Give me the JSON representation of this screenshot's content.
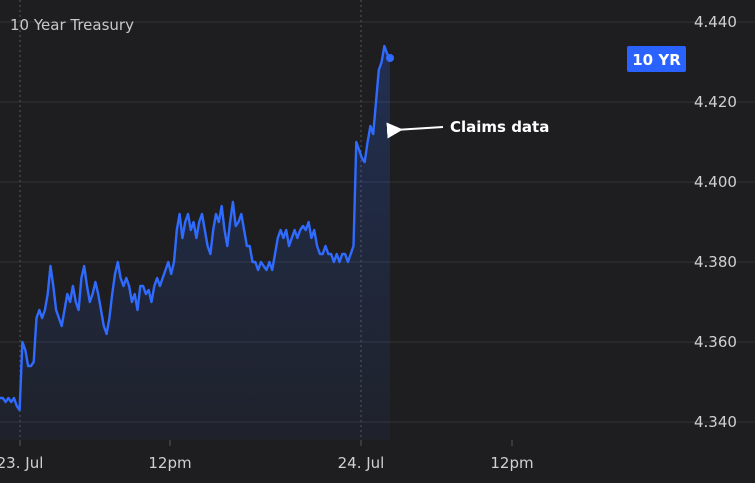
{
  "chart_data": {
    "type": "line",
    "title": "10 Year Treasury",
    "x_ticks": [
      "23. Jul",
      "12pm",
      "24. Jul",
      "12pm"
    ],
    "y_ticks": [
      "4.440",
      "4.420",
      "4.400",
      "4.380",
      "4.360",
      "4.340"
    ],
    "ylim": [
      4.3355,
      4.4455
    ],
    "grid": true,
    "badge_label": "10 YR",
    "annotation": "Claims data",
    "colors": {
      "line": "#2f6bff",
      "badge": "#2962ff",
      "background": "#1e1e20",
      "grid": "#333336"
    },
    "series": [
      {
        "values": [
          4.346,
          4.346,
          4.345,
          4.346,
          4.345,
          4.346,
          4.344,
          4.343,
          4.36,
          4.358,
          4.354,
          4.354,
          4.355,
          4.366,
          4.368,
          4.366,
          4.368,
          4.372,
          4.379,
          4.374,
          4.368,
          4.366,
          4.364,
          4.368,
          4.372,
          4.37,
          4.374,
          4.37,
          4.368,
          4.376,
          4.379,
          4.374,
          4.37,
          4.372,
          4.375,
          4.372,
          4.368,
          4.364,
          4.362,
          4.366,
          4.372,
          4.377,
          4.38,
          4.376,
          4.374,
          4.376,
          4.374,
          4.37,
          4.372,
          4.368,
          4.374,
          4.374,
          4.372,
          4.373,
          4.37,
          4.374,
          4.376,
          4.374,
          4.376,
          4.378,
          4.38,
          4.377,
          4.38,
          4.388,
          4.392,
          4.386,
          4.39,
          4.392,
          4.388,
          4.39,
          4.386,
          4.39,
          4.392,
          4.388,
          4.384,
          4.382,
          4.388,
          4.392,
          4.39,
          4.394,
          4.388,
          4.384,
          4.39,
          4.395,
          4.389,
          4.39,
          4.392,
          4.388,
          4.384,
          4.384,
          4.38,
          4.38,
          4.378,
          4.38,
          4.379,
          4.378,
          4.38,
          4.378,
          4.382,
          4.386,
          4.388,
          4.386,
          4.388,
          4.384,
          4.386,
          4.388,
          4.386,
          4.388,
          4.389,
          4.388,
          4.39,
          4.386,
          4.388,
          4.384,
          4.382,
          4.382,
          4.384,
          4.382,
          4.382,
          4.38,
          4.382,
          4.38,
          4.382,
          4.382,
          4.38,
          4.382,
          4.384,
          4.41,
          4.408,
          4.406,
          4.405,
          4.41,
          4.414,
          4.412,
          4.42,
          4.428,
          4.43,
          4.434,
          4.432,
          4.431
        ]
      }
    ]
  }
}
